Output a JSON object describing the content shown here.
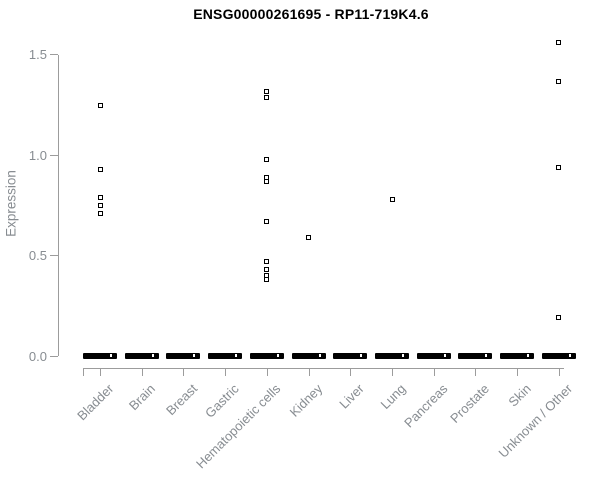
{
  "colors": {
    "background": "#ffffff",
    "point": "#000000",
    "title_text": "#000000",
    "axis_line": "#9c9c9c",
    "axis_text": "#878c91"
  },
  "chart_data": {
    "type": "scatter",
    "title": "ENSG00000261695 - RP11-719K4.6",
    "ylabel": "Expression",
    "xlabel": "",
    "ylim": [
      0,
      1.5
    ],
    "yticks": [
      0,
      0.5,
      1,
      1.5
    ],
    "grid": false,
    "legend": false,
    "marker": "open-square",
    "zero_cluster_note": "thick dashed black bar = many samples at expression 0 for every category",
    "categories": [
      "Bladder",
      "Brain",
      "Breast",
      "Gastric",
      "Hematopoietic cells",
      "Kidney",
      "Liver",
      "Lung",
      "Pancreas",
      "Prostate",
      "Skin",
      "Unknown / Other"
    ],
    "series": [
      {
        "category": "Bladder",
        "zero_cluster": true,
        "values": [
          1.25,
          0.93,
          0.79,
          0.75,
          0.71
        ]
      },
      {
        "category": "Brain",
        "zero_cluster": true,
        "values": []
      },
      {
        "category": "Breast",
        "zero_cluster": true,
        "values": []
      },
      {
        "category": "Gastric",
        "zero_cluster": true,
        "values": []
      },
      {
        "category": "Hematopoietic cells",
        "zero_cluster": true,
        "values": [
          1.32,
          1.29,
          0.98,
          0.89,
          0.87,
          0.67,
          0.47,
          0.43,
          0.4,
          0.38
        ]
      },
      {
        "category": "Kidney",
        "zero_cluster": true,
        "values": [
          0.59
        ]
      },
      {
        "category": "Liver",
        "zero_cluster": true,
        "values": []
      },
      {
        "category": "Lung",
        "zero_cluster": true,
        "values": [
          0.78
        ]
      },
      {
        "category": "Pancreas",
        "zero_cluster": true,
        "values": []
      },
      {
        "category": "Prostate",
        "zero_cluster": true,
        "values": []
      },
      {
        "category": "Skin",
        "zero_cluster": true,
        "values": []
      },
      {
        "category": "Unknown / Other",
        "zero_cluster": true,
        "values": [
          1.56,
          1.37,
          0.94,
          0.19
        ]
      }
    ]
  }
}
